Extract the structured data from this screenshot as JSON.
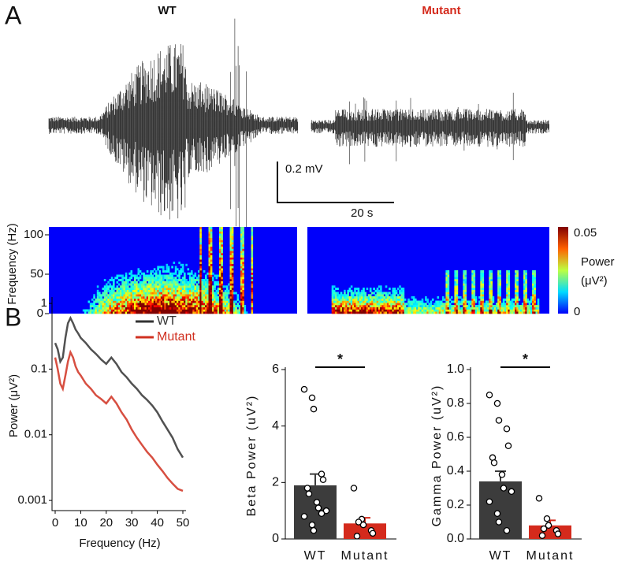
{
  "panels": {
    "a": "A",
    "b": "B"
  },
  "traces": {
    "wt": "WT",
    "mutant": "Mutant",
    "scale_amplitude": "0.2 mV",
    "scale_time": "20 s"
  },
  "chart_data": [
    {
      "type": "heatmap",
      "ylabel": "Frequency (Hz)",
      "ylim": [
        0,
        110
      ],
      "yticks": [
        0,
        50,
        100
      ],
      "colorbar": {
        "label": [
          "Power",
          "(μV²)"
        ],
        "ticks": [
          0,
          0.05
        ]
      }
    },
    {
      "type": "line",
      "xlabel": "Frequency (Hz)",
      "ylabel": "Power (μV²)",
      "log_y": true,
      "legend": "upper right",
      "xlim": [
        0,
        50
      ],
      "ylim": [
        0.0007,
        1.25
      ],
      "xticks": [
        0,
        10,
        20,
        30,
        40,
        50
      ],
      "yticks": [
        0.001,
        0.01,
        0.1,
        1
      ],
      "x": [
        0,
        1,
        2,
        3,
        4,
        5,
        6,
        7,
        8,
        9,
        10,
        12,
        14,
        16,
        18,
        20,
        22,
        24,
        26,
        28,
        30,
        32,
        34,
        36,
        38,
        40,
        42,
        44,
        46,
        48,
        50
      ],
      "series": [
        {
          "name": "WT",
          "color": "#333333",
          "values": [
            0.25,
            0.2,
            0.13,
            0.15,
            0.3,
            0.5,
            0.6,
            0.5,
            0.4,
            0.35,
            0.3,
            0.25,
            0.2,
            0.17,
            0.14,
            0.12,
            0.15,
            0.12,
            0.09,
            0.075,
            0.06,
            0.05,
            0.04,
            0.034,
            0.028,
            0.022,
            0.016,
            0.012,
            0.009,
            0.006,
            0.0045
          ]
        },
        {
          "name": "Mutant",
          "color": "#d03020",
          "values": [
            0.15,
            0.1,
            0.06,
            0.05,
            0.08,
            0.13,
            0.18,
            0.15,
            0.11,
            0.09,
            0.08,
            0.06,
            0.05,
            0.04,
            0.035,
            0.03,
            0.038,
            0.03,
            0.022,
            0.017,
            0.012,
            0.009,
            0.007,
            0.0055,
            0.0045,
            0.0035,
            0.0028,
            0.0022,
            0.0018,
            0.0015,
            0.0014
          ]
        }
      ]
    },
    {
      "type": "bar",
      "ylabel": "Beta Power (uV²)",
      "categories": [
        "WT",
        "Mutant"
      ],
      "colors": [
        "#3c3c3c",
        "#d42a1c"
      ],
      "values": [
        1.9,
        0.55
      ],
      "errors": [
        0.4,
        0.2
      ],
      "points": [
        [
          5.3,
          5.0,
          4.6,
          2.3,
          2.1,
          1.8,
          1.6,
          1.3,
          1.1,
          1.0,
          0.8,
          0.5,
          0.3,
          0.9
        ],
        [
          1.8,
          0.7,
          0.5,
          0.3,
          0.2,
          0.1,
          0.6
        ]
      ],
      "ylim": [
        0,
        6
      ],
      "yticks": [
        0,
        2,
        4,
        6
      ],
      "annotation": "*"
    },
    {
      "type": "bar",
      "ylabel": "Gamma Power (uV²)",
      "categories": [
        "WT",
        "Mutant"
      ],
      "colors": [
        "#3c3c3c",
        "#d42a1c"
      ],
      "values": [
        0.34,
        0.08
      ],
      "errors": [
        0.06,
        0.03
      ],
      "points": [
        [
          0.85,
          0.8,
          0.7,
          0.65,
          0.55,
          0.48,
          0.45,
          0.38,
          0.3,
          0.28,
          0.22,
          0.15,
          0.1,
          0.05
        ],
        [
          0.24,
          0.12,
          0.08,
          0.05,
          0.03,
          0.02,
          0.06
        ]
      ],
      "ylim": [
        0,
        1
      ],
      "yticks": [
        {
          "value": 0,
          "label": "0.0"
        },
        0.2,
        0.4,
        0.6,
        0.8,
        {
          "value": 1,
          "label": "1.0"
        }
      ],
      "annotation": "*"
    }
  ]
}
